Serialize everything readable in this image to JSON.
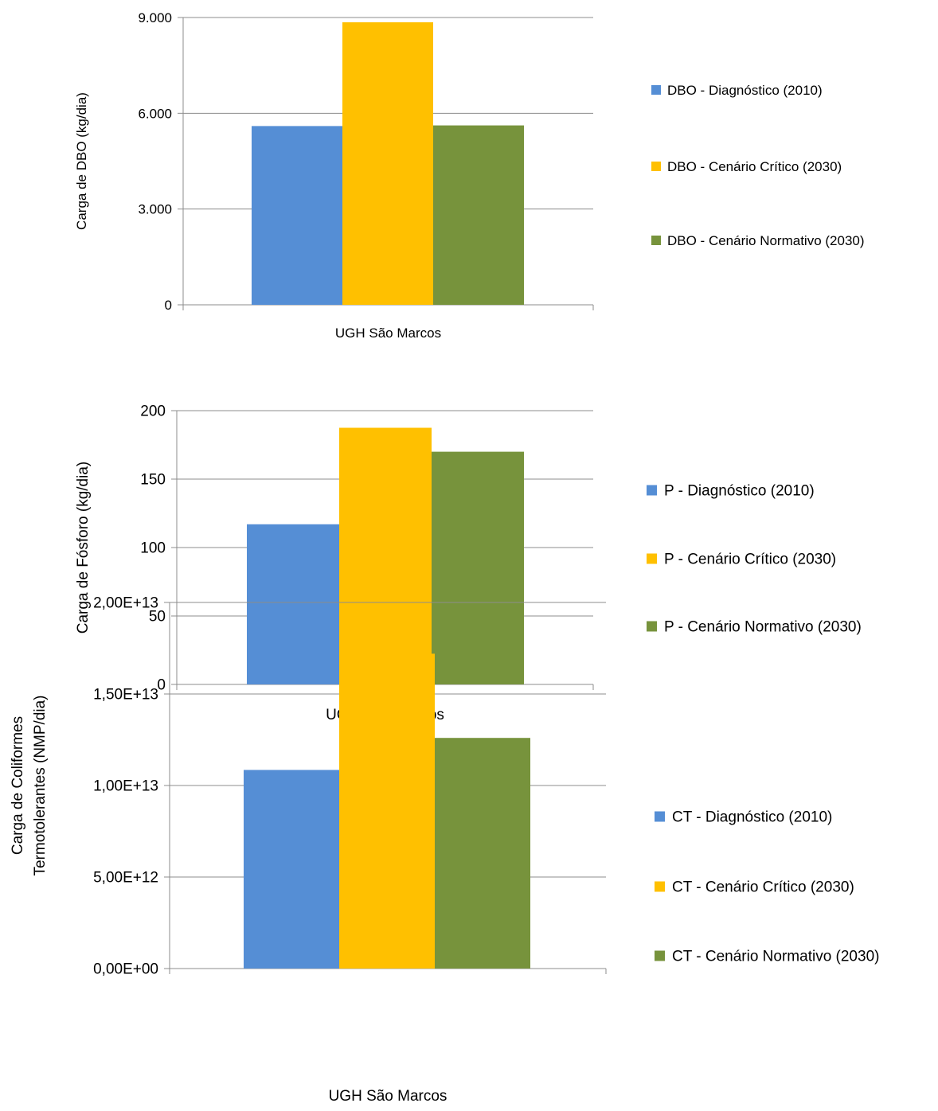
{
  "chart_data": [
    {
      "type": "bar",
      "categories": [
        "UGH São Marcos"
      ],
      "series": [
        {
          "name": "DBO - Diagnóstico (2010)",
          "values": [
            5600
          ],
          "color": "#558ED5"
        },
        {
          "name": "DBO - Cenário Crítico (2030)",
          "values": [
            8850
          ],
          "color": "#FFC000"
        },
        {
          "name": "DBO - Cenário Normativo (2030)",
          "values": [
            5620
          ],
          "color": "#77933C"
        }
      ],
      "ylabel": "Carga de DBO (kg/dia)",
      "ylabel_lines": [
        "Carga de DBO (kg/dia)"
      ],
      "ylim": [
        0,
        9000
      ],
      "yticks": [
        0,
        3000,
        6000,
        9000
      ],
      "ytick_labels": [
        "0",
        "3.000",
        "6.000",
        "9.000"
      ],
      "grid": true,
      "legend_position": "right"
    },
    {
      "type": "bar",
      "categories": [
        "UGH São Marcos"
      ],
      "series": [
        {
          "name": "P - Diagnóstico (2010)",
          "values": [
            117
          ],
          "color": "#558ED5"
        },
        {
          "name": "P - Cenário Crítico (2030)",
          "values": [
            187.5
          ],
          "color": "#FFC000"
        },
        {
          "name": "P - Cenário Normativo (2030)",
          "values": [
            170
          ],
          "color": "#77933C"
        }
      ],
      "ylabel": "Carga de Fósforo (kg/dia)",
      "ylabel_lines": [
        "Carga de Fósforo (kg/dia)"
      ],
      "ylim": [
        0,
        200
      ],
      "yticks": [
        0,
        50,
        100,
        150,
        200
      ],
      "ytick_labels": [
        "0",
        "50",
        "100",
        "150",
        "200"
      ],
      "grid": true,
      "legend_position": "right"
    },
    {
      "type": "bar",
      "categories": [
        "UGH São Marcos"
      ],
      "series": [
        {
          "name": "CT - Diagnóstico (2010)",
          "values": [
            10850000000000
          ],
          "color": "#558ED5"
        },
        {
          "name": "CT - Cenário Crítico (2030)",
          "values": [
            17200000000000
          ],
          "color": "#FFC000"
        },
        {
          "name": "CT - Cenário Normativo (2030)",
          "values": [
            12600000000000
          ],
          "color": "#77933C"
        }
      ],
      "ylabel": "Carga de Coliformes Termotolerantes (NMP/dia)",
      "ylabel_lines": [
        "Carga de Coliformes",
        "Termotolerantes (NMP/dia)"
      ],
      "ylim": [
        0,
        20000000000000
      ],
      "yticks": [
        0,
        5000000000000,
        10000000000000,
        15000000000000,
        20000000000000
      ],
      "ytick_labels": [
        "0,00E+00",
        "5,00E+12",
        "1,00E+13",
        "1,50E+13",
        "2,00E+13"
      ],
      "grid": true,
      "legend_position": "right"
    }
  ]
}
